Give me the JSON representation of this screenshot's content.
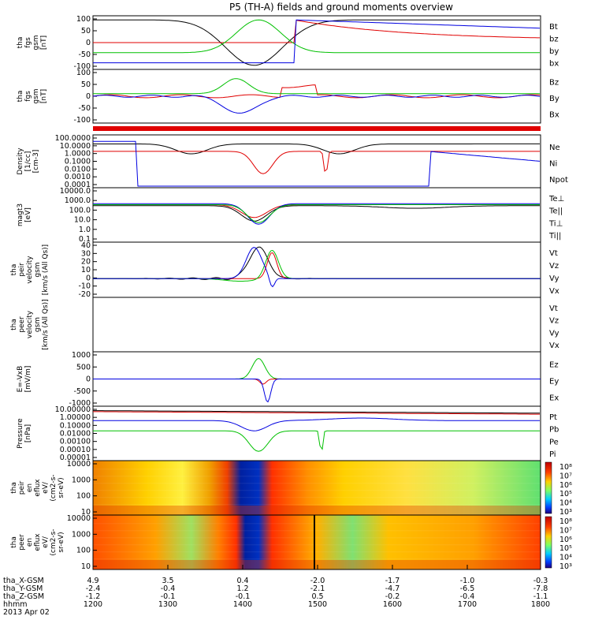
{
  "title": "P5 (TH-A) fields and ground moments overview",
  "colors": {
    "black": "#000000",
    "red": "#e00000",
    "green": "#00c000",
    "blue": "#0000e0",
    "frame": "#000000"
  },
  "panels": [
    {
      "id": "fgs",
      "ylabel": [
        "tha",
        "fgs",
        "gsm",
        "[nT]"
      ],
      "ticks": [
        "100",
        "50",
        "0",
        "-50",
        "-100"
      ],
      "legend": [
        {
          "text": "Bt",
          "color": "black"
        },
        {
          "text": "bz",
          "color": "red"
        },
        {
          "text": "by",
          "color": "green"
        },
        {
          "text": "bx",
          "color": "blue"
        }
      ]
    },
    {
      "id": "fgs2",
      "ylabel": [
        "tha",
        "fgs",
        "gsm",
        "[nT]"
      ],
      "ticks": [
        "100",
        "50",
        "0",
        "-50",
        "-100"
      ],
      "legend": [
        {
          "text": "Bz",
          "color": "red"
        },
        {
          "text": "By",
          "color": "green"
        },
        {
          "text": "Bx",
          "color": "blue"
        }
      ]
    },
    {
      "id": "density",
      "ylabel": [
        "Density",
        "[1/cc]",
        "[cm-3]"
      ],
      "ticks": [
        "100.0000",
        "10.0000",
        "1.0000",
        "0.1000",
        "0.0100",
        "0.0010",
        "0.0001"
      ],
      "legend": [
        {
          "text": "Ne",
          "color": "red"
        },
        {
          "text": "Ni",
          "color": "black"
        },
        {
          "text": "Npot",
          "color": "blue"
        }
      ]
    },
    {
      "id": "temp",
      "ylabel": [
        "magt3",
        "[eV]"
      ],
      "ticks": [
        "10000.0",
        "1000.0",
        "100.0",
        "10.0",
        "1.0",
        "0.1"
      ],
      "legend": [
        {
          "text": "Te⊥",
          "color": "red"
        },
        {
          "text": "Te||",
          "color": "black"
        },
        {
          "text": "Ti⊥",
          "color": "blue"
        },
        {
          "text": "Ti||",
          "color": "green"
        }
      ]
    },
    {
      "id": "peir_vel",
      "ylabel": [
        "tha",
        "peir",
        "velocity",
        "gsm",
        "[km/s (All Qs)]"
      ],
      "ticks": [
        "40",
        "30",
        "20",
        "10",
        "0",
        "-10",
        "-20"
      ],
      "legend": [
        {
          "text": "Vt",
          "color": "black"
        },
        {
          "text": "Vz",
          "color": "red"
        },
        {
          "text": "Vy",
          "color": "green"
        },
        {
          "text": "Vx",
          "color": "blue"
        }
      ]
    },
    {
      "id": "peer_vel",
      "ylabel": [
        "tha",
        "peer",
        "velocity",
        "gsm",
        "[km/s (All Qs)]"
      ],
      "ticks": [],
      "legend": [
        {
          "text": "Vt",
          "color": "black"
        },
        {
          "text": "Vz",
          "color": "red"
        },
        {
          "text": "Vy",
          "color": "green"
        },
        {
          "text": "Vx",
          "color": "blue"
        }
      ]
    },
    {
      "id": "efield",
      "ylabel": [
        "E=-VxB",
        "[mV/m]"
      ],
      "ticks": [
        "1000",
        "500",
        "0",
        "-500",
        "-1000"
      ],
      "legend": [
        {
          "text": "Ez",
          "color": "red"
        },
        {
          "text": "Ey",
          "color": "green"
        },
        {
          "text": "Ex",
          "color": "blue"
        }
      ]
    },
    {
      "id": "pressure",
      "ylabel": [
        "Pressure",
        "[nPa]"
      ],
      "ticks": [
        "10.00000",
        "1.00000",
        "0.10000",
        "0.01000",
        "0.00100",
        "0.00010",
        "0.00001"
      ],
      "legend": [
        {
          "text": "Pt",
          "color": "black"
        },
        {
          "text": "Pb",
          "color": "red"
        },
        {
          "text": "Pe",
          "color": "green"
        },
        {
          "text": "Pi",
          "color": "blue"
        }
      ]
    },
    {
      "id": "peir_spec",
      "ylabel": [
        "tha",
        "peir",
        "en",
        "eflux",
        "eV/",
        "(cm2-s-",
        "sr-eV)"
      ],
      "ticks": [
        "10000",
        "1000",
        "100",
        "10"
      ],
      "cbar": [
        "10⁸",
        "10⁷",
        "10⁶",
        "10⁵",
        "10⁴",
        "10³"
      ]
    },
    {
      "id": "peer_spec",
      "ylabel": [
        "tha",
        "peer",
        "en",
        "eflux",
        "eV/",
        "(cm2-s-",
        "sr-eV)"
      ],
      "ticks": [
        "10000",
        "1000",
        "100",
        "10"
      ],
      "cbar": [
        "10⁸",
        "10⁷",
        "10⁶",
        "10⁵",
        "10⁴",
        "10³"
      ]
    }
  ],
  "ephemeris": {
    "rows": [
      {
        "label": "tha_X-GSM",
        "values": [
          "4.9",
          "3.5",
          "0.4",
          "-2.0",
          "-1.7",
          "-1.0",
          "-0.3"
        ]
      },
      {
        "label": "tha_Y-GSM",
        "values": [
          "-2.4",
          "-0.4",
          "1.2",
          "-2.1",
          "-4.7",
          "-6.5",
          "-7.8"
        ]
      },
      {
        "label": "tha_Z-GSM",
        "values": [
          "-1.2",
          "-0.1",
          "-0.1",
          "0.5",
          "-0.2",
          "-0.4",
          "-1.1"
        ]
      },
      {
        "label": "hhmm",
        "values": [
          "1200",
          "1300",
          "1400",
          "1500",
          "1600",
          "1700",
          "1800"
        ]
      }
    ],
    "date": "2013 Apr 02"
  },
  "chart_data": [
    {
      "type": "line",
      "title": "P5 (TH-A) fields and ground moments overview",
      "ylabel": "tha fgs gsm [nT]",
      "x": [
        1200,
        1800
      ],
      "ylim": [
        -100,
        100
      ],
      "series": [
        {
          "name": "Bt"
        },
        {
          "name": "bz"
        },
        {
          "name": "by"
        },
        {
          "name": "bx"
        }
      ]
    },
    {
      "type": "line",
      "ylabel": "tha fgs gsm [nT]",
      "ylim": [
        -125,
        125
      ],
      "series": [
        {
          "name": "Bz"
        },
        {
          "name": "By"
        },
        {
          "name": "Bx"
        }
      ]
    },
    {
      "type": "line",
      "ylabel": "Density [1/cc] [cm-3]",
      "ylim": [
        0.0001,
        100
      ],
      "scale": "log",
      "series": [
        {
          "name": "Ne"
        },
        {
          "name": "Ni"
        },
        {
          "name": "Npot"
        }
      ]
    },
    {
      "type": "line",
      "ylabel": "magt3 [eV]",
      "ylim": [
        0.1,
        10000
      ],
      "scale": "log",
      "series": [
        {
          "name": "Te⊥"
        },
        {
          "name": "Te||"
        },
        {
          "name": "Ti⊥"
        },
        {
          "name": "Ti||"
        }
      ]
    },
    {
      "type": "line",
      "ylabel": "tha peir velocity gsm [km/s (All Qs)]",
      "ylim": [
        -20,
        40
      ],
      "series": [
        {
          "name": "Vt"
        },
        {
          "name": "Vz"
        },
        {
          "name": "Vy"
        },
        {
          "name": "Vx"
        }
      ]
    },
    {
      "type": "line",
      "ylabel": "tha peer velocity gsm [km/s (All Qs)]",
      "series": [
        {
          "name": "Vt"
        },
        {
          "name": "Vz"
        },
        {
          "name": "Vy"
        },
        {
          "name": "Vx"
        }
      ]
    },
    {
      "type": "line",
      "ylabel": "E=-VxB [mV/m]",
      "ylim": [
        -1000,
        1000
      ],
      "series": [
        {
          "name": "Ez"
        },
        {
          "name": "Ey"
        },
        {
          "name": "Ex"
        }
      ]
    },
    {
      "type": "line",
      "ylabel": "Pressure [nPa]",
      "ylim": [
        1e-05,
        10
      ],
      "scale": "log",
      "series": [
        {
          "name": "Pt"
        },
        {
          "name": "Pb"
        },
        {
          "name": "Pe"
        },
        {
          "name": "Pi"
        }
      ]
    },
    {
      "type": "heatmap",
      "ylabel": "tha peir en eflux eV/(cm2-s-sr-eV)",
      "ylim": [
        10,
        10000
      ],
      "scale": "log",
      "colorbar": [
        1000,
        100000000
      ]
    },
    {
      "type": "heatmap",
      "ylabel": "tha peer en eflux eV/(cm2-s-sr-eV)",
      "ylim": [
        10,
        10000
      ],
      "scale": "log",
      "colorbar": [
        1000,
        100000000
      ]
    }
  ]
}
